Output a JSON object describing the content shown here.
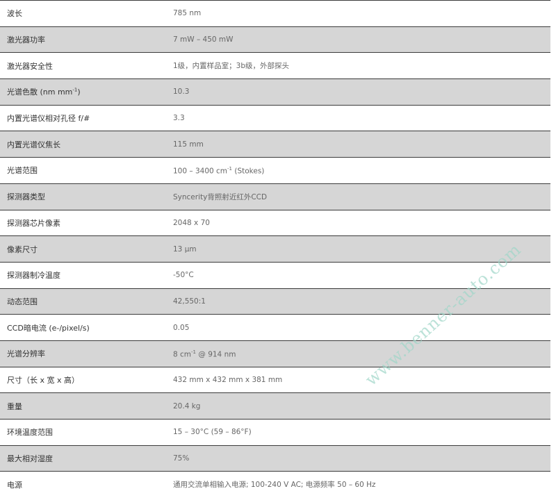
{
  "specs": [
    {
      "label": "波长",
      "value": "785 nm"
    },
    {
      "label": "激光器功率",
      "value": "7 mW – 450 mW"
    },
    {
      "label": "激光器安全性",
      "value": "1级，内置样品室；3b级，外部探头"
    },
    {
      "label": "光谱色散 (nm mm",
      "label_sup": "-1",
      "label_tail": ")",
      "value": "10.3"
    },
    {
      "label": "内置光谱仪相对孔径 f/#",
      "value": "3.3"
    },
    {
      "label": "内置光谱仪焦长",
      "value": "115 mm"
    },
    {
      "label": "光谱范围",
      "value": "100 – 3400 cm",
      "value_sup": "-1",
      "value_tail": " (Stokes)"
    },
    {
      "label": "探测器类型",
      "value": "Syncerity背照射近红外CCD"
    },
    {
      "label": "探测器芯片像素",
      "value": "2048 x 70"
    },
    {
      "label": "像素尺寸",
      "value": "13 μm"
    },
    {
      "label": "探测器制冷温度",
      "value": "-50°C"
    },
    {
      "label": "动态范围",
      "value": "42,550:1"
    },
    {
      "label": "CCD暗电流 (e-/pixel/s)",
      "value": "0.05"
    },
    {
      "label": "光谱分辨率",
      "value": "8 cm",
      "value_sup": "-1",
      "value_tail": " @ 914 nm"
    },
    {
      "label": "尺寸（长 x 宽 x 高）",
      "value": "432 mm x 432 mm x 381 mm"
    },
    {
      "label": "重量",
      "value": "20.4 kg"
    },
    {
      "label": "环境温度范围",
      "value": "15 – 30°C (59 – 86°F)"
    },
    {
      "label": "最大相对湿度",
      "value": "75%"
    },
    {
      "label": "电源",
      "value": "通用交流单相输入电源; 100-240 V AC; 电源频率 50 – 60 Hz"
    }
  ],
  "watermark": "www.benner-auto.com",
  "colors": {
    "row_alt": "#d6d6d6",
    "border": "#3a3a3a",
    "watermark": "#9fd6c8"
  }
}
